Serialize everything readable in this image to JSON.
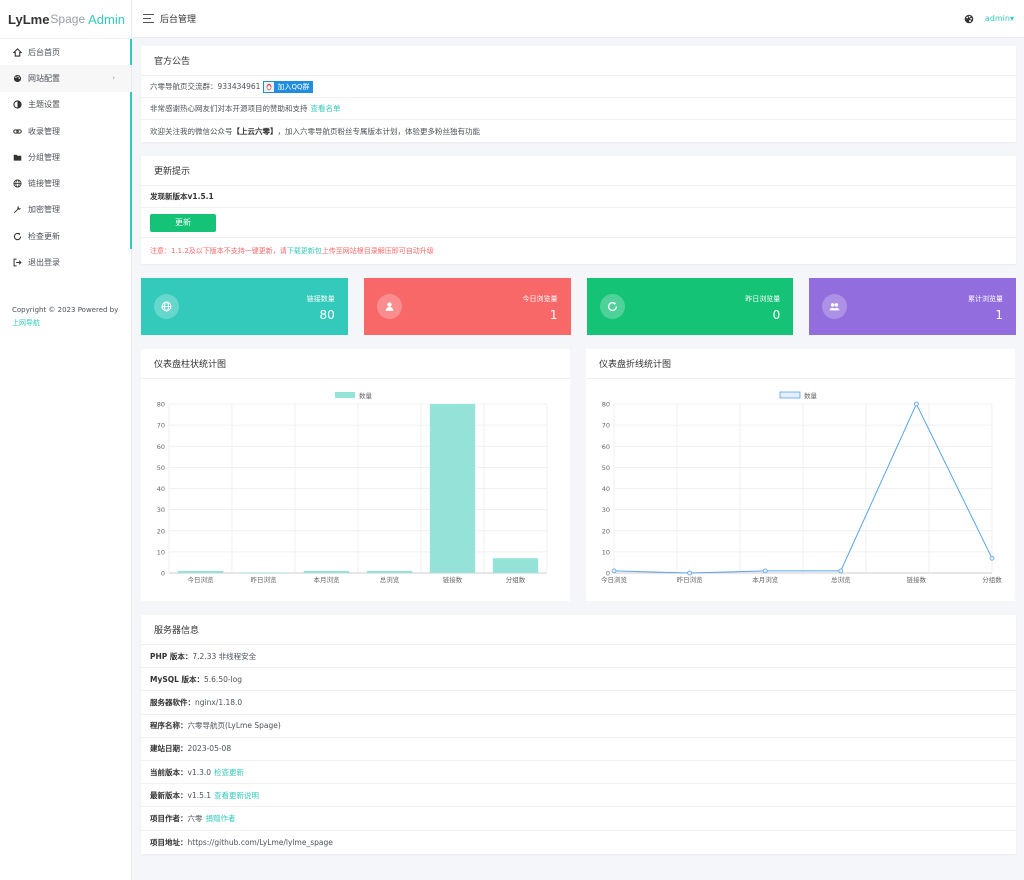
{
  "brand": {
    "part1": "LyLme",
    "part2": "Spage",
    "part3": "Admin"
  },
  "sidebar": {
    "items": [
      {
        "label": "后台首页",
        "icon": "home-icon"
      },
      {
        "label": "网站配置",
        "icon": "palette-icon"
      },
      {
        "label": "主题设置",
        "icon": "contrast-icon"
      },
      {
        "label": "收录管理",
        "icon": "link-chain-icon"
      },
      {
        "label": "分组管理",
        "icon": "folder-icon"
      },
      {
        "label": "链接管理",
        "icon": "globe-icon"
      },
      {
        "label": "加密管理",
        "icon": "wrench-icon"
      },
      {
        "label": "检查更新",
        "icon": "refresh-icon"
      },
      {
        "label": "退出登录",
        "icon": "logout-icon"
      }
    ],
    "copyright_text": "Copyright © 2023 Powered by",
    "copyright_link": "上网导航"
  },
  "header": {
    "title": "后台管理",
    "user": "admin▾"
  },
  "announce": {
    "title": "官方公告",
    "line1_text": "六零导航页交流群：933434961",
    "qq_button": "加入QQ群",
    "line2_text": "非常感谢热心网友们对本开源项目的赞助和支持",
    "line2_link": "查看名单",
    "line3_pre": "欢迎关注我的微信公众号",
    "line3_bold": "【上云六零】",
    "line3_post": "，加入六零导航页粉丝专属版本计划，体验更多粉丝独有功能"
  },
  "update": {
    "title": "更新提示",
    "found": "发现新版本v1.5.1",
    "button": "更新",
    "warn_pre": "注意：1.1.2及以下版本不支持一键更新，请",
    "warn_link": "下载更新包",
    "warn_post": "上传至网站根目录解压即可自动升级"
  },
  "stats": [
    {
      "label": "链接数量",
      "value": "80",
      "color": "#33cabb",
      "icon": "globe-icon"
    },
    {
      "label": "今日浏览量",
      "value": "1",
      "color": "#f96868",
      "icon": "user-icon"
    },
    {
      "label": "昨日浏览量",
      "value": "0",
      "color": "#15c377",
      "icon": "refresh-icon"
    },
    {
      "label": "累计浏览量",
      "value": "1",
      "color": "#926dde",
      "icon": "users-icon"
    }
  ],
  "charts": {
    "bar_title": "仪表盘柱状统计图",
    "line_title": "仪表盘折线统计图"
  },
  "chart_data": [
    {
      "type": "bar",
      "title": "",
      "categories": [
        "今日浏览",
        "昨日浏览",
        "本月浏览",
        "总浏览",
        "链接数",
        "分组数"
      ],
      "series": [
        {
          "name": "数量",
          "values": [
            1,
            0,
            1,
            1,
            80,
            7
          ]
        }
      ],
      "ylim": [
        0,
        80
      ],
      "yticks": [
        0,
        10,
        20,
        30,
        40,
        50,
        60,
        70,
        80
      ],
      "legend": "top-center",
      "grid": true,
      "color": "#94e2d8"
    },
    {
      "type": "line",
      "title": "",
      "categories": [
        "今日浏览",
        "昨日浏览",
        "本月浏览",
        "总浏览",
        "链接数",
        "分组数"
      ],
      "series": [
        {
          "name": "数量",
          "values": [
            1,
            0,
            1,
            1,
            80,
            7
          ]
        }
      ],
      "ylim": [
        0,
        80
      ],
      "yticks": [
        0,
        10,
        20,
        30,
        40,
        50,
        60,
        70,
        80
      ],
      "legend": "top-center",
      "grid": true,
      "color": "#5ba3e6"
    }
  ],
  "server": {
    "title": "服务器信息",
    "rows": [
      {
        "label": "PHP 版本：",
        "value": "7.2.33 非线程安全",
        "link": ""
      },
      {
        "label": "MySQL 版本：",
        "value": "5.6.50-log",
        "link": ""
      },
      {
        "label": "服务器软件：",
        "value": "nginx/1.18.0",
        "link": ""
      },
      {
        "label": "程序名称：",
        "value": "六零导航页(LyLme Spage)",
        "link": ""
      },
      {
        "label": "建站日期：",
        "value": "2023-05-08",
        "link": ""
      },
      {
        "label": "当前版本：",
        "value": "v1.3.0",
        "link": "检查更新"
      },
      {
        "label": "最新版本：",
        "value": "v1.5.1",
        "link": "查看更新说明"
      },
      {
        "label": "项目作者：",
        "value": "六零",
        "link": "捐赠作者"
      },
      {
        "label": "项目地址：",
        "value": "https://github.com/LyLme/lylme_spage",
        "link": ""
      }
    ]
  }
}
